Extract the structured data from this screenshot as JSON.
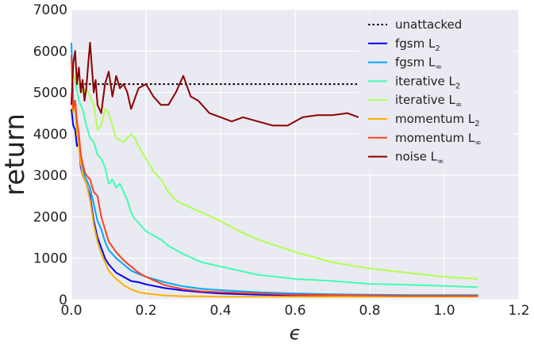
{
  "chart_data": {
    "type": "line",
    "xlabel": "ϵ",
    "ylabel": "return",
    "xlim": [
      0.0,
      1.2
    ],
    "ylim": [
      0,
      7000
    ],
    "xticks": [
      "0.0",
      "0.2",
      "0.4",
      "0.6",
      "0.8",
      "1.0",
      "1.2"
    ],
    "yticks": [
      "0",
      "1000",
      "2000",
      "3000",
      "4000",
      "5000",
      "6000",
      "7000"
    ],
    "xtick_values": [
      0.0,
      0.2,
      0.4,
      0.6,
      0.8,
      1.0,
      1.2
    ],
    "ytick_values": [
      0,
      1000,
      2000,
      3000,
      4000,
      5000,
      6000,
      7000
    ],
    "grid": true,
    "legend_position": "top-right",
    "background": "#eaeaf2",
    "series": [
      {
        "name": "unattacked",
        "legend_main": "unattacked",
        "legend_sub": "",
        "color": "#000000",
        "dash": "dotted",
        "x": [
          0.0,
          0.77
        ],
        "y": [
          5200,
          5200
        ]
      },
      {
        "name": "fgsm L2",
        "legend_main": "fgsm L",
        "legend_sub": "2",
        "color": "#0000ff",
        "dash": "solid",
        "x": [
          0.0,
          0.005,
          0.01,
          0.015,
          0.02,
          0.025,
          0.03,
          0.035,
          0.04,
          0.05,
          0.06,
          0.07,
          0.08,
          0.09,
          0.1,
          0.12,
          0.14,
          0.16,
          0.18,
          0.2,
          0.25,
          0.3,
          0.35,
          0.4,
          0.5,
          0.6,
          0.7,
          0.8,
          0.9,
          1.0,
          1.09
        ],
        "y": [
          4600,
          4200,
          4100,
          3700,
          3800,
          3200,
          3000,
          2900,
          2800,
          2500,
          1900,
          1500,
          1250,
          1000,
          850,
          650,
          550,
          450,
          420,
          370,
          280,
          220,
          180,
          150,
          120,
          100,
          90,
          80,
          80,
          80,
          80
        ]
      },
      {
        "name": "fgsm L∞",
        "legend_main": "fgsm L",
        "legend_sub": "∞",
        "color": "#00a8ff",
        "dash": "solid",
        "x": [
          0.0,
          0.005,
          0.01,
          0.015,
          0.02,
          0.025,
          0.03,
          0.035,
          0.04,
          0.05,
          0.06,
          0.07,
          0.08,
          0.09,
          0.1,
          0.12,
          0.14,
          0.16,
          0.18,
          0.2,
          0.25,
          0.3,
          0.35,
          0.4,
          0.5,
          0.6,
          0.7,
          0.8,
          0.9,
          1.0,
          1.09
        ],
        "y": [
          6200,
          4800,
          4700,
          4000,
          3800,
          3500,
          3200,
          3000,
          2900,
          2700,
          2300,
          1900,
          1700,
          1400,
          1200,
          1000,
          850,
          700,
          620,
          550,
          420,
          320,
          260,
          230,
          180,
          150,
          130,
          120,
          110,
          110,
          110
        ]
      },
      {
        "name": "iterative L2",
        "legend_main": "iterative L",
        "legend_sub": "2",
        "color": "#40ffb0",
        "dash": "solid",
        "x": [
          0.0,
          0.01,
          0.02,
          0.03,
          0.04,
          0.05,
          0.06,
          0.07,
          0.08,
          0.09,
          0.1,
          0.11,
          0.12,
          0.13,
          0.14,
          0.15,
          0.16,
          0.17,
          0.18,
          0.2,
          0.22,
          0.24,
          0.26,
          0.28,
          0.3,
          0.35,
          0.4,
          0.5,
          0.6,
          0.7,
          0.8,
          0.9,
          1.0,
          1.09
        ],
        "y": [
          5500,
          5300,
          4800,
          4600,
          4200,
          3900,
          3800,
          3500,
          3400,
          3200,
          2800,
          2900,
          2700,
          2800,
          2600,
          2400,
          2100,
          1950,
          1850,
          1650,
          1550,
          1450,
          1300,
          1200,
          1100,
          900,
          800,
          600,
          500,
          450,
          380,
          360,
          330,
          300
        ]
      },
      {
        "name": "iterative L∞",
        "legend_main": "iterative L",
        "legend_sub": "∞",
        "color": "#b0ff50",
        "dash": "solid",
        "x": [
          0.0,
          0.01,
          0.02,
          0.03,
          0.04,
          0.05,
          0.06,
          0.07,
          0.08,
          0.09,
          0.1,
          0.11,
          0.12,
          0.13,
          0.14,
          0.15,
          0.16,
          0.17,
          0.18,
          0.2,
          0.22,
          0.24,
          0.26,
          0.28,
          0.3,
          0.35,
          0.4,
          0.45,
          0.5,
          0.6,
          0.7,
          0.8,
          0.9,
          1.0,
          1.09
        ],
        "y": [
          5600,
          5300,
          5200,
          5000,
          5100,
          4900,
          4700,
          4100,
          4200,
          4600,
          4500,
          4200,
          3900,
          3850,
          3800,
          3900,
          4000,
          3900,
          3700,
          3400,
          3100,
          2900,
          2600,
          2400,
          2300,
          2100,
          1900,
          1650,
          1450,
          1150,
          900,
          750,
          650,
          550,
          500
        ]
      },
      {
        "name": "momentum L2",
        "legend_main": "momentum L",
        "legend_sub": "2",
        "color": "#ffb000",
        "dash": "solid",
        "x": [
          0.0,
          0.005,
          0.01,
          0.015,
          0.02,
          0.025,
          0.03,
          0.035,
          0.04,
          0.05,
          0.06,
          0.07,
          0.08,
          0.09,
          0.1,
          0.12,
          0.14,
          0.16,
          0.18,
          0.2,
          0.25,
          0.3,
          0.35,
          0.4,
          0.5,
          0.6,
          0.7,
          0.8,
          0.9,
          1.0,
          1.09
        ],
        "y": [
          4900,
          4500,
          4800,
          4000,
          3700,
          3300,
          3000,
          2900,
          2800,
          2400,
          1800,
          1400,
          1100,
          900,
          700,
          500,
          350,
          250,
          180,
          150,
          100,
          80,
          80,
          70,
          70,
          70,
          70,
          70,
          70,
          70,
          70
        ]
      },
      {
        "name": "momentum L∞",
        "legend_main": "momentum L",
        "legend_sub": "∞",
        "color": "#ff4020",
        "dash": "solid",
        "x": [
          0.0,
          0.005,
          0.01,
          0.015,
          0.02,
          0.025,
          0.03,
          0.035,
          0.04,
          0.05,
          0.06,
          0.07,
          0.08,
          0.09,
          0.1,
          0.12,
          0.14,
          0.16,
          0.18,
          0.2,
          0.25,
          0.3,
          0.35,
          0.4,
          0.5,
          0.6,
          0.7,
          0.8,
          0.9,
          1.0,
          1.09
        ],
        "y": [
          5900,
          4600,
          4800,
          4300,
          4000,
          3500,
          3300,
          3100,
          3000,
          2900,
          2600,
          2500,
          2000,
          1700,
          1400,
          1150,
          950,
          800,
          650,
          550,
          350,
          250,
          200,
          180,
          150,
          120,
          110,
          100,
          90,
          90,
          90
        ]
      },
      {
        "name": "noise L∞",
        "legend_main": "noise L",
        "legend_sub": "∞",
        "color": "#8b0000",
        "dash": "solid",
        "x": [
          0.0,
          0.005,
          0.01,
          0.015,
          0.02,
          0.025,
          0.03,
          0.035,
          0.04,
          0.045,
          0.05,
          0.055,
          0.06,
          0.065,
          0.07,
          0.08,
          0.09,
          0.1,
          0.11,
          0.12,
          0.13,
          0.14,
          0.15,
          0.16,
          0.18,
          0.2,
          0.22,
          0.24,
          0.26,
          0.28,
          0.3,
          0.32,
          0.34,
          0.37,
          0.4,
          0.43,
          0.46,
          0.5,
          0.54,
          0.58,
          0.62,
          0.66,
          0.7,
          0.74,
          0.77
        ],
        "y": [
          4700,
          5700,
          6000,
          5200,
          5600,
          5000,
          5300,
          4800,
          5100,
          5700,
          6200,
          5600,
          5000,
          5300,
          4700,
          4500,
          5200,
          5500,
          4900,
          5400,
          5100,
          5200,
          5000,
          4600,
          5100,
          5200,
          4900,
          4700,
          4700,
          5000,
          5400,
          4900,
          4800,
          4500,
          4400,
          4300,
          4400,
          4300,
          4200,
          4200,
          4400,
          4450,
          4450,
          4500,
          4400
        ]
      }
    ]
  }
}
